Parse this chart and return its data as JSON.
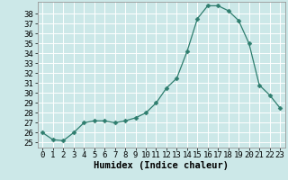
{
  "x": [
    0,
    1,
    2,
    3,
    4,
    5,
    6,
    7,
    8,
    9,
    10,
    11,
    12,
    13,
    14,
    15,
    16,
    17,
    18,
    19,
    20,
    21,
    22,
    23
  ],
  "y": [
    26.0,
    25.3,
    25.2,
    26.0,
    27.0,
    27.2,
    27.2,
    27.0,
    27.2,
    27.5,
    28.0,
    29.0,
    30.5,
    31.5,
    34.2,
    37.5,
    38.8,
    38.8,
    38.3,
    37.3,
    35.0,
    30.8,
    29.8,
    28.5
  ],
  "line_color": "#2e7d6e",
  "marker": "D",
  "marker_size": 2.5,
  "bg_color": "#cce8e8",
  "grid_color": "#ffffff",
  "xlabel": "Humidex (Indice chaleur)",
  "ylim": [
    24.5,
    39.2
  ],
  "yticks": [
    25,
    26,
    27,
    28,
    29,
    30,
    31,
    32,
    33,
    34,
    35,
    36,
    37,
    38
  ],
  "xlim": [
    -0.5,
    23.5
  ],
  "xticks": [
    0,
    1,
    2,
    3,
    4,
    5,
    6,
    7,
    8,
    9,
    10,
    11,
    12,
    13,
    14,
    15,
    16,
    17,
    18,
    19,
    20,
    21,
    22,
    23
  ],
  "tick_fontsize": 6.5,
  "xlabel_fontsize": 7.5
}
